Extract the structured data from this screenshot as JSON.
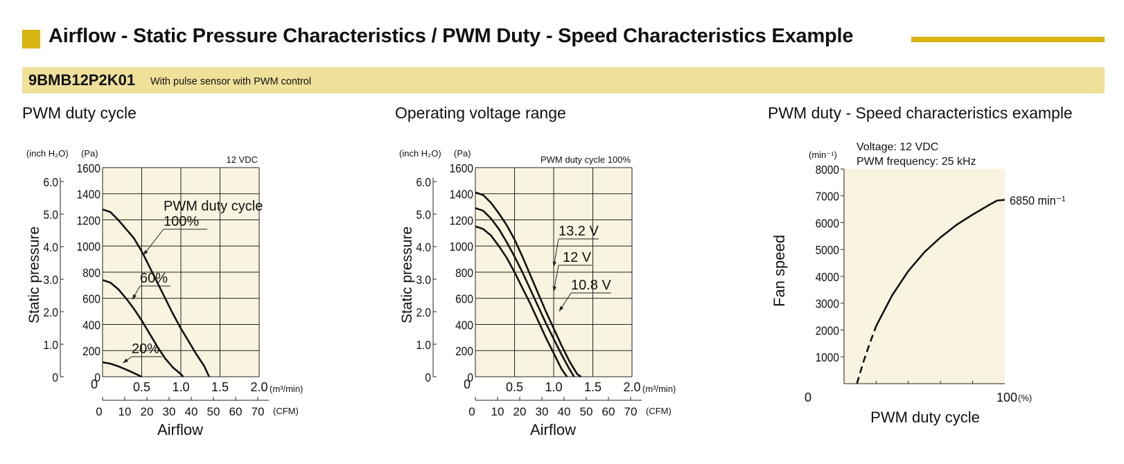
{
  "header": {
    "title": "Airflow - Static Pressure Characteristics / PWM Duty - Speed Characteristics Example"
  },
  "product": {
    "model": "9BMB12P2K01",
    "description": "With pulse sensor with PWM control"
  },
  "colors": {
    "accent": "#d7b512",
    "band": "#efe09a",
    "plot_bg": "#f8f4df",
    "line": "#111111"
  },
  "sections": [
    {
      "title": "PWM duty cycle"
    },
    {
      "title": "Operating voltage range"
    },
    {
      "title": "PWM duty - Speed characteristics example"
    }
  ],
  "chart_data": [
    {
      "type": "line",
      "title": "PWM duty cycle",
      "condition": "12 VDC",
      "xlabel": "Airflow",
      "ylabel": "Static pressure",
      "x_unit": "(m³/min)",
      "x2_unit": "(CFM)",
      "y_unit": "(Pa)",
      "y2_unit": "(inch H₂O)",
      "xlim": [
        0,
        2.0
      ],
      "ylim": [
        0,
        1600
      ],
      "x_ticks": [
        "0",
        "0.5",
        "1.0",
        "1.5",
        "2.0"
      ],
      "y_ticks": [
        "0",
        "200",
        "400",
        "600",
        "800",
        "1000",
        "1200",
        "1400",
        "1600"
      ],
      "x2_ticks": [
        "0",
        "10",
        "20",
        "30",
        "40",
        "50",
        "60",
        "70"
      ],
      "y2_ticks": [
        "0",
        "1.0",
        "2.0",
        "3.0",
        "4.0",
        "5.0",
        "6.0"
      ],
      "legend_title": "PWM duty cycle",
      "grid": true,
      "series": [
        {
          "name": "100%",
          "points": [
            [
              0,
              1280
            ],
            [
              0.1,
              1260
            ],
            [
              0.2,
              1200
            ],
            [
              0.3,
              1130
            ],
            [
              0.4,
              1060
            ],
            [
              0.5,
              960
            ],
            [
              0.6,
              840
            ],
            [
              0.7,
              720
            ],
            [
              0.8,
              600
            ],
            [
              0.9,
              480
            ],
            [
              1.0,
              370
            ],
            [
              1.1,
              270
            ],
            [
              1.2,
              170
            ],
            [
              1.3,
              80
            ],
            [
              1.36,
              0
            ]
          ]
        },
        {
          "name": "60%",
          "points": [
            [
              0,
              740
            ],
            [
              0.1,
              720
            ],
            [
              0.2,
              670
            ],
            [
              0.3,
              600
            ],
            [
              0.4,
              520
            ],
            [
              0.5,
              430
            ],
            [
              0.6,
              330
            ],
            [
              0.7,
              230
            ],
            [
              0.8,
              140
            ],
            [
              0.9,
              70
            ],
            [
              1.0,
              20
            ],
            [
              1.03,
              0
            ]
          ]
        },
        {
          "name": "20%",
          "points": [
            [
              0,
              110
            ],
            [
              0.1,
              100
            ],
            [
              0.2,
              80
            ],
            [
              0.3,
              55
            ],
            [
              0.4,
              28
            ],
            [
              0.5,
              0
            ]
          ]
        }
      ],
      "labels": [
        "100%",
        "60%",
        "20%"
      ]
    },
    {
      "type": "line",
      "title": "Operating voltage range",
      "condition": "PWM duty cycle 100%",
      "xlabel": "Airflow",
      "ylabel": "Static pressure",
      "x_unit": "(m³/min)",
      "x2_unit": "(CFM)",
      "y_unit": "(Pa)",
      "y2_unit": "(inch H₂O)",
      "xlim": [
        0,
        2.0
      ],
      "ylim": [
        0,
        1600
      ],
      "x_ticks": [
        "0",
        "0.5",
        "1.0",
        "1.5",
        "2.0"
      ],
      "y_ticks": [
        "0",
        "200",
        "400",
        "600",
        "800",
        "1000",
        "1200",
        "1400",
        "1600"
      ],
      "x2_ticks": [
        "0",
        "10",
        "20",
        "30",
        "40",
        "50",
        "60",
        "70"
      ],
      "y2_ticks": [
        "0",
        "1.0",
        "2.0",
        "3.0",
        "4.0",
        "5.0",
        "6.0"
      ],
      "grid": true,
      "series": [
        {
          "name": "13.2 V",
          "points": [
            [
              0,
              1410
            ],
            [
              0.1,
              1390
            ],
            [
              0.2,
              1330
            ],
            [
              0.3,
              1250
            ],
            [
              0.4,
              1160
            ],
            [
              0.5,
              1050
            ],
            [
              0.6,
              920
            ],
            [
              0.7,
              780
            ],
            [
              0.8,
              640
            ],
            [
              0.9,
              500
            ],
            [
              1.0,
              370
            ],
            [
              1.1,
              240
            ],
            [
              1.2,
              120
            ],
            [
              1.3,
              20
            ],
            [
              1.35,
              0
            ]
          ]
        },
        {
          "name": "12 V",
          "points": [
            [
              0,
              1290
            ],
            [
              0.1,
              1270
            ],
            [
              0.2,
              1210
            ],
            [
              0.3,
              1130
            ],
            [
              0.4,
              1030
            ],
            [
              0.5,
              920
            ],
            [
              0.6,
              800
            ],
            [
              0.7,
              670
            ],
            [
              0.8,
              540
            ],
            [
              0.9,
              410
            ],
            [
              1.0,
              290
            ],
            [
              1.1,
              170
            ],
            [
              1.2,
              60
            ],
            [
              1.26,
              0
            ]
          ]
        },
        {
          "name": "10.8 V",
          "points": [
            [
              0,
              1150
            ],
            [
              0.1,
              1130
            ],
            [
              0.2,
              1080
            ],
            [
              0.3,
              1000
            ],
            [
              0.4,
              910
            ],
            [
              0.5,
              800
            ],
            [
              0.6,
              680
            ],
            [
              0.7,
              560
            ],
            [
              0.8,
              430
            ],
            [
              0.9,
              300
            ],
            [
              1.0,
              180
            ],
            [
              1.1,
              60
            ],
            [
              1.17,
              0
            ]
          ]
        }
      ],
      "labels": [
        "13.2 V",
        "12 V",
        "10.8 V"
      ]
    },
    {
      "type": "line",
      "title": "PWM duty - Speed characteristics example",
      "condition_lines": [
        "Voltage: 12 VDC",
        "PWM frequency: 25 kHz"
      ],
      "xlabel": "PWM duty cycle",
      "ylabel": "Fan speed",
      "x_unit": "(%)",
      "y_unit": "(min⁻¹)",
      "xlim": [
        0,
        100
      ],
      "ylim": [
        0,
        8000
      ],
      "x_ticks": [
        "0",
        "100"
      ],
      "y_ticks": [
        "1000",
        "2000",
        "3000",
        "4000",
        "5000",
        "6000",
        "7000",
        "8000"
      ],
      "grid": false,
      "series": [
        {
          "name": "Fan speed",
          "points": [
            [
              20,
              2150
            ],
            [
              30,
              3300
            ],
            [
              40,
              4200
            ],
            [
              50,
              4900
            ],
            [
              60,
              5450
            ],
            [
              70,
              5920
            ],
            [
              80,
              6300
            ],
            [
              90,
              6650
            ],
            [
              95,
              6820
            ],
            [
              100,
              6850
            ]
          ]
        }
      ],
      "dashed_segment": [
        [
          8,
          0
        ],
        [
          12,
          800
        ],
        [
          16,
          1500
        ],
        [
          20,
          2150
        ]
      ],
      "end_label": "6850 min⁻¹"
    }
  ]
}
